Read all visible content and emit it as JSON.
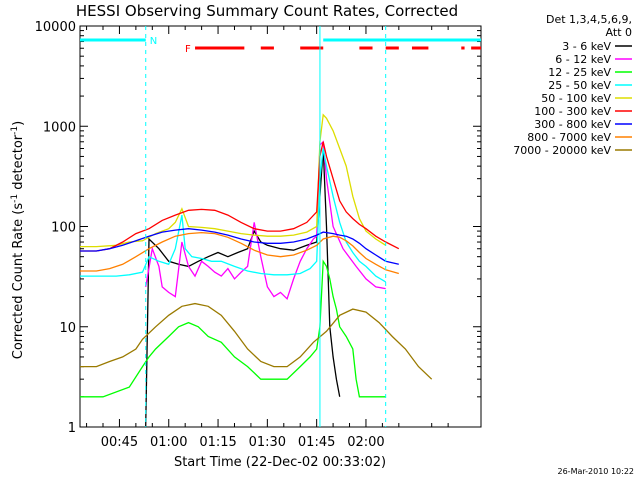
{
  "chart_data": {
    "type": "line",
    "title": "HESSI Observing Summary Count Rates, Corrected",
    "xlabel": "Start Time (22-Dec-02 00:33:02)",
    "ylabel_main": "Corrected Count Rate (s",
    "ylabel_exp1": "-1",
    "ylabel_mid": " detector",
    "ylabel_exp2": "-1",
    "ylabel_end": ")",
    "yscale": "log",
    "ylim": [
      1,
      10000
    ],
    "xlim_minutes_after_0030": [
      3,
      125
    ],
    "x_ticks": [
      {
        "label": "00:45",
        "minute": 15
      },
      {
        "label": "01:00",
        "minute": 30
      },
      {
        "label": "01:15",
        "minute": 45
      },
      {
        "label": "01:30",
        "minute": 60
      },
      {
        "label": "01:45",
        "minute": 75
      },
      {
        "label": "02:00",
        "minute": 90
      }
    ],
    "y_ticks": [
      {
        "label": "1",
        "value": 1
      },
      {
        "label": "10",
        "value": 10
      },
      {
        "label": "100",
        "value": 100
      },
      {
        "label": "1000",
        "value": 1000
      },
      {
        "label": "10000",
        "value": 10000
      }
    ],
    "legend_header": [
      "Det 1,3,4,5,6,9,",
      "Att 0"
    ],
    "legend_placement": "top-right, outside plot",
    "flag_labels": {
      "flare": "F",
      "night": "N"
    },
    "flare_flag_color": "#ff0000",
    "night_flag_color": "#00ffff",
    "series": [
      {
        "name": "3 - 6 keV",
        "color": "#000000",
        "points": [
          [
            23,
            1
          ],
          [
            24,
            75
          ],
          [
            27,
            60
          ],
          [
            30,
            45
          ],
          [
            33,
            42
          ],
          [
            36,
            40
          ],
          [
            39,
            45
          ],
          [
            42,
            50
          ],
          [
            45,
            55
          ],
          [
            48,
            50
          ],
          [
            51,
            55
          ],
          [
            54,
            60
          ],
          [
            56,
            90
          ],
          [
            58,
            70
          ],
          [
            60,
            65
          ],
          [
            64,
            60
          ],
          [
            68,
            58
          ],
          [
            72,
            65
          ],
          [
            75,
            70
          ],
          [
            76,
            200
          ],
          [
            77,
            600
          ],
          [
            78,
            100
          ],
          [
            79,
            10
          ],
          [
            80,
            5
          ],
          [
            81,
            3
          ],
          [
            82,
            2
          ]
        ]
      },
      {
        "name": "6 - 12 keV",
        "color": "#ff00ff",
        "points": [
          [
            23,
            25
          ],
          [
            25,
            60
          ],
          [
            27,
            40
          ],
          [
            28,
            25
          ],
          [
            30,
            22
          ],
          [
            32,
            20
          ],
          [
            34,
            70
          ],
          [
            36,
            40
          ],
          [
            38,
            32
          ],
          [
            40,
            45
          ],
          [
            42,
            40
          ],
          [
            44,
            35
          ],
          [
            46,
            32
          ],
          [
            48,
            38
          ],
          [
            50,
            30
          ],
          [
            52,
            35
          ],
          [
            54,
            40
          ],
          [
            56,
            110
          ],
          [
            58,
            50
          ],
          [
            60,
            25
          ],
          [
            62,
            20
          ],
          [
            64,
            22
          ],
          [
            66,
            19
          ],
          [
            68,
            30
          ],
          [
            70,
            45
          ],
          [
            72,
            60
          ],
          [
            74,
            75
          ],
          [
            75,
            80
          ],
          [
            76,
            650
          ],
          [
            77,
            700
          ],
          [
            78,
            300
          ],
          [
            80,
            100
          ],
          [
            83,
            60
          ],
          [
            87,
            40
          ],
          [
            90,
            30
          ],
          [
            93,
            25
          ],
          [
            96,
            24
          ]
        ]
      },
      {
        "name": "12 - 25 keV",
        "color": "#00ff00",
        "points": [
          [
            3,
            2
          ],
          [
            10,
            2
          ],
          [
            18,
            2.5
          ],
          [
            22,
            4
          ],
          [
            24,
            5
          ],
          [
            26,
            6
          ],
          [
            30,
            8
          ],
          [
            33,
            10
          ],
          [
            36,
            11
          ],
          [
            39,
            10
          ],
          [
            42,
            8
          ],
          [
            46,
            7
          ],
          [
            50,
            5
          ],
          [
            54,
            4
          ],
          [
            58,
            3
          ],
          [
            62,
            3
          ],
          [
            66,
            3
          ],
          [
            70,
            4
          ],
          [
            73,
            5
          ],
          [
            75,
            6
          ],
          [
            76,
            10
          ],
          [
            77,
            45
          ],
          [
            78,
            40
          ],
          [
            79,
            30
          ],
          [
            80,
            20
          ],
          [
            81,
            15
          ],
          [
            82,
            10
          ],
          [
            84,
            8
          ],
          [
            86,
            6
          ],
          [
            87,
            3
          ],
          [
            88,
            2
          ],
          [
            92,
            2
          ],
          [
            96,
            2
          ]
        ]
      },
      {
        "name": "25 - 50 keV",
        "color": "#00ffff",
        "points": [
          [
            3,
            32
          ],
          [
            8,
            32
          ],
          [
            14,
            32
          ],
          [
            18,
            33
          ],
          [
            22,
            35
          ],
          [
            24,
            50
          ],
          [
            27,
            45
          ],
          [
            30,
            42
          ],
          [
            32,
            60
          ],
          [
            34,
            130
          ],
          [
            35,
            60
          ],
          [
            37,
            50
          ],
          [
            40,
            48
          ],
          [
            43,
            45
          ],
          [
            46,
            45
          ],
          [
            50,
            40
          ],
          [
            54,
            36
          ],
          [
            58,
            34
          ],
          [
            62,
            33
          ],
          [
            66,
            33
          ],
          [
            70,
            34
          ],
          [
            73,
            38
          ],
          [
            75,
            45
          ],
          [
            76,
            300
          ],
          [
            77,
            600
          ],
          [
            78,
            400
          ],
          [
            80,
            200
          ],
          [
            82,
            110
          ],
          [
            84,
            70
          ],
          [
            86,
            55
          ],
          [
            88,
            45
          ],
          [
            90,
            40
          ],
          [
            93,
            32
          ],
          [
            96,
            28
          ]
        ]
      },
      {
        "name": "50 - 100 keV",
        "color": "#dddd00",
        "points": [
          [
            3,
            63
          ],
          [
            8,
            63
          ],
          [
            14,
            65
          ],
          [
            18,
            70
          ],
          [
            22,
            72
          ],
          [
            26,
            85
          ],
          [
            30,
            95
          ],
          [
            32,
            110
          ],
          [
            34,
            150
          ],
          [
            36,
            100
          ],
          [
            40,
            98
          ],
          [
            44,
            95
          ],
          [
            48,
            90
          ],
          [
            52,
            85
          ],
          [
            56,
            82
          ],
          [
            60,
            80
          ],
          [
            64,
            80
          ],
          [
            68,
            82
          ],
          [
            72,
            88
          ],
          [
            75,
            100
          ],
          [
            76,
            700
          ],
          [
            77,
            1300
          ],
          [
            78,
            1200
          ],
          [
            80,
            900
          ],
          [
            82,
            600
          ],
          [
            84,
            400
          ],
          [
            86,
            200
          ],
          [
            88,
            120
          ],
          [
            90,
            90
          ],
          [
            93,
            75
          ],
          [
            96,
            65
          ]
        ]
      },
      {
        "name": "100 - 300 keV",
        "color": "#ff0000",
        "points": [
          [
            3,
            57
          ],
          [
            8,
            57
          ],
          [
            12,
            60
          ],
          [
            16,
            70
          ],
          [
            20,
            85
          ],
          [
            24,
            95
          ],
          [
            28,
            115
          ],
          [
            32,
            130
          ],
          [
            36,
            145
          ],
          [
            40,
            148
          ],
          [
            44,
            145
          ],
          [
            48,
            130
          ],
          [
            52,
            110
          ],
          [
            56,
            95
          ],
          [
            60,
            90
          ],
          [
            64,
            90
          ],
          [
            68,
            95
          ],
          [
            72,
            110
          ],
          [
            75,
            140
          ],
          [
            76,
            500
          ],
          [
            77,
            700
          ],
          [
            78,
            500
          ],
          [
            80,
            300
          ],
          [
            82,
            180
          ],
          [
            84,
            140
          ],
          [
            86,
            120
          ],
          [
            88,
            105
          ],
          [
            90,
            95
          ],
          [
            93,
            80
          ],
          [
            96,
            70
          ],
          [
            100,
            60
          ]
        ]
      },
      {
        "name": "300 - 800 keV",
        "color": "#0000ff",
        "points": [
          [
            3,
            57
          ],
          [
            8,
            57
          ],
          [
            12,
            60
          ],
          [
            16,
            65
          ],
          [
            20,
            72
          ],
          [
            24,
            80
          ],
          [
            28,
            88
          ],
          [
            32,
            92
          ],
          [
            36,
            95
          ],
          [
            40,
            92
          ],
          [
            44,
            88
          ],
          [
            48,
            82
          ],
          [
            52,
            75
          ],
          [
            56,
            70
          ],
          [
            60,
            68
          ],
          [
            64,
            68
          ],
          [
            68,
            70
          ],
          [
            72,
            75
          ],
          [
            75,
            82
          ],
          [
            77,
            88
          ],
          [
            80,
            85
          ],
          [
            82,
            82
          ],
          [
            84,
            80
          ],
          [
            86,
            75
          ],
          [
            88,
            68
          ],
          [
            90,
            60
          ],
          [
            93,
            52
          ],
          [
            96,
            45
          ],
          [
            100,
            42
          ]
        ]
      },
      {
        "name": "800 - 7000 keV",
        "color": "#ff8000",
        "points": [
          [
            3,
            36
          ],
          [
            8,
            36
          ],
          [
            12,
            38
          ],
          [
            16,
            42
          ],
          [
            20,
            50
          ],
          [
            24,
            60
          ],
          [
            28,
            70
          ],
          [
            32,
            80
          ],
          [
            36,
            85
          ],
          [
            40,
            87
          ],
          [
            44,
            85
          ],
          [
            48,
            78
          ],
          [
            52,
            68
          ],
          [
            56,
            58
          ],
          [
            60,
            52
          ],
          [
            64,
            50
          ],
          [
            68,
            52
          ],
          [
            72,
            58
          ],
          [
            75,
            65
          ],
          [
            77,
            75
          ],
          [
            80,
            80
          ],
          [
            82,
            78
          ],
          [
            84,
            72
          ],
          [
            86,
            64
          ],
          [
            88,
            55
          ],
          [
            90,
            48
          ],
          [
            93,
            42
          ],
          [
            96,
            37
          ],
          [
            100,
            34
          ]
        ]
      },
      {
        "name": "7000 - 20000 keV",
        "color": "#9a7a00",
        "points": [
          [
            3,
            4
          ],
          [
            8,
            4
          ],
          [
            12,
            4.5
          ],
          [
            16,
            5
          ],
          [
            20,
            6
          ],
          [
            22,
            7.5
          ],
          [
            26,
            10
          ],
          [
            30,
            13
          ],
          [
            34,
            16
          ],
          [
            38,
            17
          ],
          [
            42,
            16
          ],
          [
            46,
            13
          ],
          [
            50,
            9
          ],
          [
            54,
            6
          ],
          [
            58,
            4.5
          ],
          [
            62,
            4
          ],
          [
            66,
            4
          ],
          [
            70,
            5
          ],
          [
            74,
            7
          ],
          [
            78,
            9
          ],
          [
            82,
            13
          ],
          [
            86,
            15
          ],
          [
            90,
            14
          ],
          [
            94,
            11
          ],
          [
            98,
            8
          ],
          [
            102,
            6
          ],
          [
            106,
            4
          ],
          [
            110,
            3
          ]
        ]
      }
    ],
    "flare_segments_minutes": [
      [
        38,
        53
      ],
      [
        58,
        62
      ],
      [
        70,
        77
      ],
      [
        88,
        92
      ],
      [
        96,
        100
      ],
      [
        104,
        109
      ],
      [
        119,
        120
      ],
      [
        122,
        125
      ]
    ],
    "night_segments_minutes": [
      [
        3,
        23
      ],
      [
        77,
        125
      ]
    ],
    "dashed_marker_minutes": [
      23,
      96
    ],
    "solid_marker_minutes": [
      76
    ],
    "timestamp": "26-Mar-2010 10:22"
  }
}
